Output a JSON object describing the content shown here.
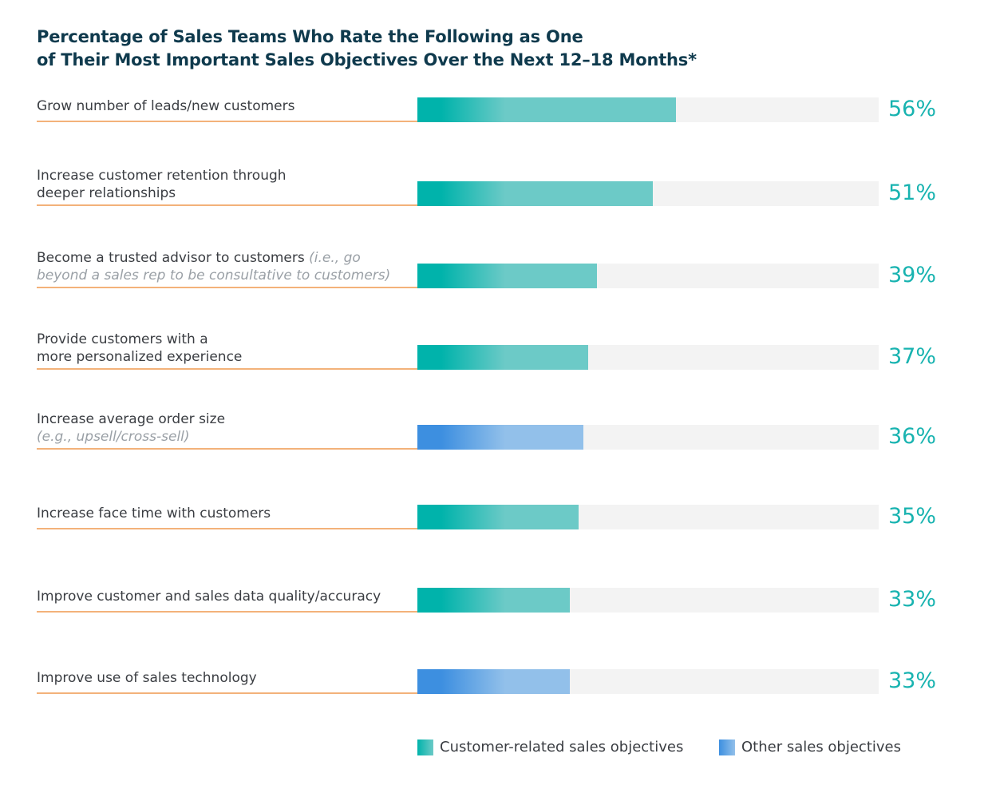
{
  "chart_data": {
    "type": "bar",
    "orientation": "horizontal",
    "title": "Percentage of Sales Teams Who Rate the Following as One of Their Most Important Sales Objectives Over the Next 12–18 Months*",
    "title_lines": [
      "Percentage of Sales Teams Who Rate the Following as One",
      "of Their Most Important Sales Objectives Over the Next 12–18 Months*"
    ],
    "xlim": [
      0,
      100
    ],
    "unit": "%",
    "categories": [
      {
        "lines": [
          {
            "text": "Grow number of leads/new customers"
          }
        ],
        "value": 56,
        "label": "56%",
        "group": "customer"
      },
      {
        "lines": [
          {
            "text": "Increase customer retention through"
          },
          {
            "text": "deeper relationships"
          }
        ],
        "value": 51,
        "label": "51%",
        "group": "customer"
      },
      {
        "lines": [
          {
            "text": "Become a trusted advisor to customers",
            "note": "(i.e., go"
          },
          {
            "note": "beyond a sales rep to be consultative to customers)"
          }
        ],
        "value": 39,
        "label": "39%",
        "group": "customer"
      },
      {
        "lines": [
          {
            "text": "Provide customers with a"
          },
          {
            "text": "more personalized experience"
          }
        ],
        "value": 37,
        "label": "37%",
        "group": "customer"
      },
      {
        "lines": [
          {
            "text": "Increase average order size"
          },
          {
            "note": "(e.g., upsell/cross-sell)"
          }
        ],
        "value": 36,
        "label": "36%",
        "group": "other"
      },
      {
        "lines": [
          {
            "text": "Increase face time with customers"
          }
        ],
        "value": 35,
        "label": "35%",
        "group": "customer"
      },
      {
        "lines": [
          {
            "text": "Improve customer and sales data quality/accuracy"
          }
        ],
        "value": 33,
        "label": "33%",
        "group": "customer"
      },
      {
        "lines": [
          {
            "text": "Improve use of sales technology"
          }
        ],
        "value": 33,
        "label": "33%",
        "group": "other"
      }
    ],
    "legend": [
      {
        "key": "customer",
        "label": "Customer-related sales objectives",
        "color": "#00b3ab",
        "color_light": "#6ccac7"
      },
      {
        "key": "other",
        "label": "Other sales objectives",
        "color": "#3d8fe0",
        "color_light": "#92c0ea"
      }
    ],
    "legend_position": "bottom-right"
  }
}
